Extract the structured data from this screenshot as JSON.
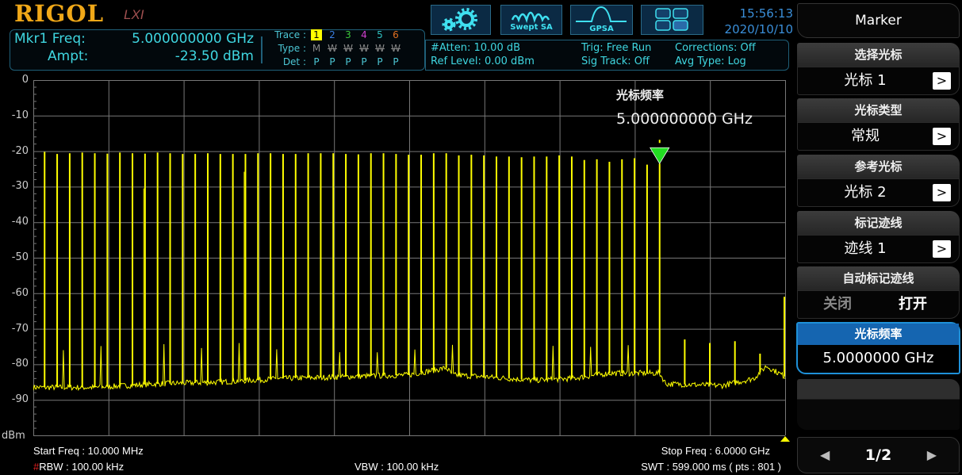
{
  "header": {
    "logo": "RIGOL",
    "logo_badge": "LXI",
    "mkr_freq_label": "Mkr1 Freq:",
    "mkr_freq_value": "5.000000000 GHz",
    "ampt_label": "Ampt:",
    "ampt_value": "-23.50 dBm",
    "trace_label": "Trace :",
    "type_label": "Type :",
    "det_label": "Det :",
    "traces": [
      {
        "num": "1",
        "type": "M",
        "det": "P",
        "color": "#ffff00",
        "active": true
      },
      {
        "num": "2",
        "type": "W",
        "det": "P",
        "color": "#3a7ee0"
      },
      {
        "num": "3",
        "type": "W",
        "det": "P",
        "color": "#3cc83c"
      },
      {
        "num": "4",
        "type": "W",
        "det": "P",
        "color": "#d040d0"
      },
      {
        "num": "5",
        "type": "W",
        "det": "P",
        "color": "#30c0c0"
      },
      {
        "num": "6",
        "type": "W",
        "det": "P",
        "color": "#e07020"
      }
    ],
    "atten": "#Atten: 10.00 dB",
    "ref_level": "Ref Level: 0.00 dBm",
    "trig": "Trig: Free Run",
    "sig_track": "Sig Track: Off",
    "corrections": "Corrections: Off",
    "avg_type": "Avg Type: Log",
    "buttons": {
      "settings_icon": "gears-icon",
      "swept_sa": "Swept SA",
      "gpsa": "GPSA",
      "layout_icon": "grid-icon"
    },
    "time": "15:56:13",
    "date": "2020/10/10"
  },
  "plot": {
    "marker_label": "光标频率",
    "marker_value": "5.000000000 GHz",
    "y_unit": "dBm",
    "y_ticks": [
      "0",
      "-10",
      "-20",
      "-30",
      "-40",
      "-50",
      "-60",
      "-70",
      "-80",
      "-90"
    ],
    "trace_color": "#ffff00",
    "marker_color": "#22dd22"
  },
  "footer": {
    "start_freq": "Start Freq : 10.000 MHz",
    "stop_freq": "Stop Freq : 6.0000 GHz",
    "rbw_hash": "#",
    "rbw": "RBW : 100.00 kHz",
    "vbw": "VBW : 100.00 kHz",
    "swt": "SWT : 599.000 ms ( pts : 801 )"
  },
  "menu": {
    "title": "Marker",
    "items": [
      {
        "title": "选择光标",
        "value": "光标 1"
      },
      {
        "title": "光标类型",
        "value": "常规"
      },
      {
        "title": "参考光标",
        "value": "光标 2"
      },
      {
        "title": "标记迹线",
        "value": "迹线 1"
      }
    ],
    "auto_trace": {
      "title": "自动标记迹线",
      "off": "关闭",
      "on": "打开",
      "selected": "打开"
    },
    "marker_freq": {
      "title": "光标频率",
      "value": "5.0000000 GHz"
    },
    "page": "1/2"
  },
  "chart_data": {
    "type": "line",
    "x_unit": "GHz",
    "xlim": [
      0.01,
      6.0
    ],
    "ylabel": "dBm",
    "ylim": [
      -100,
      0
    ],
    "grid": true,
    "peaks_freq_ghz": [
      0.1,
      0.2,
      0.3,
      0.4,
      0.5,
      0.6,
      0.7,
      0.8,
      0.9,
      1.0,
      1.1,
      1.2,
      1.3,
      1.4,
      1.5,
      1.6,
      1.7,
      1.8,
      1.9,
      2.0,
      2.1,
      2.2,
      2.3,
      2.4,
      2.5,
      2.6,
      2.7,
      2.8,
      2.9,
      3.0,
      3.1,
      3.2,
      3.3,
      3.4,
      3.5,
      3.6,
      3.7,
      3.8,
      3.9,
      4.0,
      4.1,
      4.2,
      4.3,
      4.4,
      4.5,
      4.6,
      4.7,
      4.8,
      4.9,
      5.0,
      5.2,
      5.4,
      5.6,
      5.8,
      6.0
    ],
    "peaks_dbm": [
      -20.2,
      -20.8,
      -20.6,
      -20.4,
      -20.6,
      -20.7,
      -20.4,
      -20.6,
      -20.7,
      -20.4,
      -20.6,
      -20.8,
      -20.8,
      -20.6,
      -20.8,
      -20.8,
      -20.8,
      -20.6,
      -20.6,
      -20.8,
      -20.8,
      -20.6,
      -20.6,
      -20.6,
      -20.8,
      -20.9,
      -20.6,
      -20.6,
      -20.8,
      -21.0,
      -21.0,
      -20.6,
      -20.6,
      -21.2,
      -21.0,
      -21.2,
      -21.5,
      -21.5,
      -21.7,
      -21.5,
      -21.5,
      -21.2,
      -21.5,
      -22.5,
      -22.3,
      -23.0,
      -22.3,
      -22.0,
      -23.8,
      -23.5,
      -73,
      -74,
      -73.5,
      -77,
      -61
    ],
    "extra_spurs": [
      {
        "freq_ghz": 0.89,
        "dbm": -30.5
      },
      {
        "freq_ghz": 1.69,
        "dbm": -25.8
      }
    ],
    "noise_floor": {
      "freq_ghz": [
        0.01,
        0.5,
        1.0,
        1.5,
        2.0,
        2.5,
        3.0,
        3.3,
        3.35,
        3.6,
        4.0,
        4.3,
        4.6,
        5.0,
        5.05,
        5.5,
        5.75,
        5.85,
        6.0
      ],
      "dbm": [
        -86.5,
        -86.5,
        -85.5,
        -85,
        -84,
        -83.5,
        -83,
        -81,
        -83,
        -83.5,
        -84.5,
        -84,
        -82.5,
        -82.5,
        -85.5,
        -86,
        -84,
        -80.5,
        -83.5
      ]
    },
    "marker": {
      "freq_ghz": 5.0,
      "dbm": -23.5
    }
  }
}
